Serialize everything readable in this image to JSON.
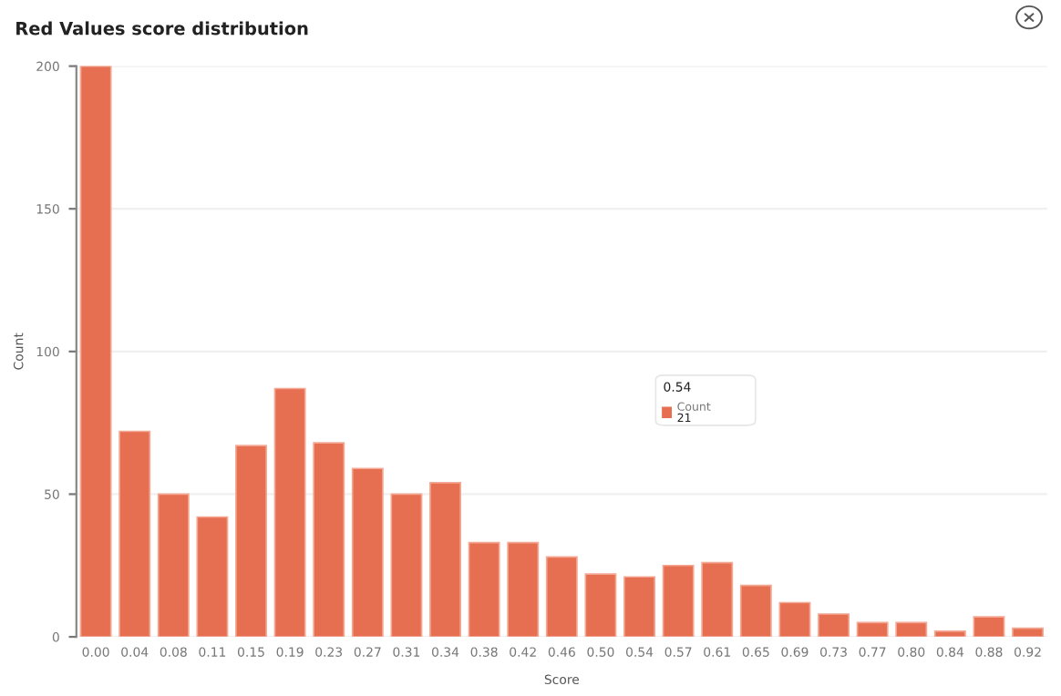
{
  "chart_data": {
    "type": "bar",
    "title": "Red Values score distribution",
    "xlabel": "Score",
    "ylabel": "Count",
    "categories": [
      "0.00",
      "0.04",
      "0.08",
      "0.11",
      "0.15",
      "0.19",
      "0.23",
      "0.27",
      "0.31",
      "0.34",
      "0.38",
      "0.42",
      "0.46",
      "0.50",
      "0.54",
      "0.57",
      "0.61",
      "0.65",
      "0.69",
      "0.73",
      "0.77",
      "0.80",
      "0.84",
      "0.88",
      "0.92"
    ],
    "series": [
      {
        "name": "Count",
        "color": "#e76f51",
        "values": [
          200,
          72,
          50,
          42,
          67,
          87,
          68,
          59,
          50,
          54,
          33,
          33,
          28,
          22,
          21,
          25,
          26,
          18,
          12,
          8,
          5,
          5,
          2,
          7,
          3
        ]
      }
    ],
    "ylim": [
      0,
      200
    ],
    "yticks": [
      0,
      50,
      100,
      150,
      200
    ],
    "grid": "y",
    "annotations": [
      "0.54",
      "21"
    ]
  }
}
